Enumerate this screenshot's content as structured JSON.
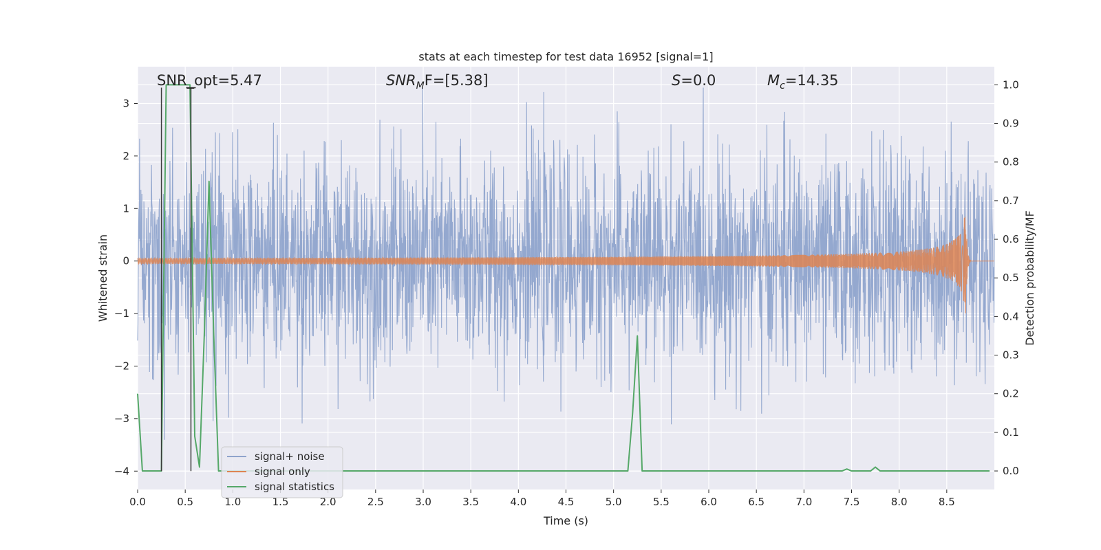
{
  "chart_data": {
    "type": "line",
    "title": "stats at each timestep for test data 16952 [signal=1]",
    "xlabel": "Time (s)",
    "ylabel": "Whitened strain",
    "ylabel_right": "Detection probability/MF",
    "xlim": [
      0.0,
      9.0
    ],
    "ylim": [
      -4.35,
      3.7
    ],
    "ylim_right": [
      -0.048,
      1.047
    ],
    "xticks": [
      "0.0",
      "0.5",
      "1.0",
      "1.5",
      "2.0",
      "2.5",
      "3.0",
      "3.5",
      "4.0",
      "4.5",
      "5.0",
      "5.5",
      "6.0",
      "6.5",
      "7.0",
      "7.5",
      "8.0",
      "8.5"
    ],
    "yticks": [
      "3",
      "2",
      "1",
      "0",
      "−1",
      "−2",
      "−3",
      "−4"
    ],
    "yticks_right": [
      "1.0",
      "0.9",
      "0.8",
      "0.7",
      "0.6",
      "0.5",
      "0.4",
      "0.3",
      "0.2",
      "0.1",
      "0.0"
    ],
    "annotations": {
      "snr_opt": "SNR_opt=5.47",
      "snr_mf_sym": "SNR",
      "snr_mf_sub": "M",
      "snr_mf_rest": "F=[5.38]",
      "s_sym": "S",
      "s_rest": "=0.0",
      "mc_sym": "M",
      "mc_sub": "c",
      "mc_rest": "=14.35"
    },
    "legend": {
      "position": "lower-left",
      "entries": [
        "signal+ noise",
        "signal only",
        "signal statistics"
      ]
    },
    "colors": {
      "noise": "#8fa4cc",
      "signal": "#dd8452",
      "stats": "#55a868",
      "background": "#eaeaf2",
      "grid": "#ffffff",
      "vline": "#3a3a3a"
    },
    "series": [
      {
        "name": "signal+ noise",
        "description_range": [
          -3.8,
          3.3
        ],
        "typical_std": 1.0
      },
      {
        "name": "signal only",
        "chirp_end_time": 8.7,
        "peak_amplitude": 1.1
      },
      {
        "name": "signal statistics",
        "axis": "right",
        "x": [
          0.0,
          0.05,
          0.1,
          0.15,
          0.2,
          0.25,
          0.3,
          0.35,
          0.4,
          0.45,
          0.5,
          0.55,
          0.6,
          0.65,
          0.7,
          0.75,
          0.8,
          0.85,
          0.9,
          0.95,
          1.0,
          1.05,
          1.1,
          5.1,
          5.15,
          5.2,
          5.25,
          5.3,
          5.35,
          5.4,
          7.35,
          7.4,
          7.45,
          7.5,
          7.7,
          7.75,
          7.8,
          8.95
        ],
        "y": [
          0.2,
          0.0,
          0.0,
          0.0,
          0.0,
          0.0,
          1.0,
          1.0,
          1.0,
          1.0,
          1.0,
          1.0,
          0.09,
          0.01,
          0.35,
          0.75,
          0.35,
          0.0,
          0.0,
          0.0,
          0.0,
          0.0,
          0.0,
          0.0,
          0.0,
          0.15,
          0.35,
          0.0,
          0.0,
          0.0,
          0.0,
          0.0,
          0.005,
          0.0,
          0.0,
          0.01,
          0.0,
          0.0
        ]
      }
    ],
    "vlines": [
      0.25,
      0.56
    ]
  }
}
